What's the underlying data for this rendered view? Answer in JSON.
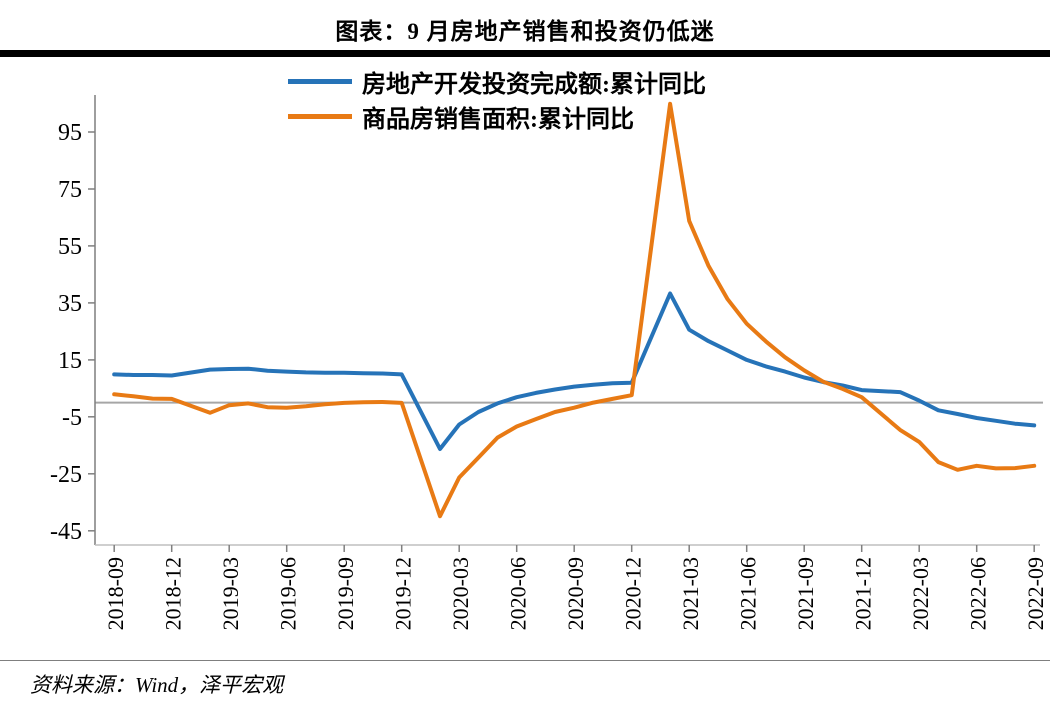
{
  "title": "图表：9 月房地产销售和投资仍低迷",
  "source": "资料来源：Wind，泽平宏观",
  "colors": {
    "investment_line": "#2673b8",
    "sales_line": "#e87a14",
    "zero_line": "#a6a6a6",
    "axis": "#7f7f7f",
    "title_bar": "#000000"
  },
  "chart_data": {
    "type": "line",
    "title": "图表：9 月房地产销售和投资仍低迷",
    "xlabel": "",
    "ylabel": "",
    "x_unit": "months since 2018-09 (cumulative year-on-year, %)",
    "xlim": [
      -1,
      48.3
    ],
    "ylim": [
      -50,
      108
    ],
    "yticks": [
      95,
      75,
      55,
      35,
      15,
      -5,
      -25,
      -45
    ],
    "zero_line": 0,
    "grid": false,
    "legend_position": "top-center",
    "xtick_positions": [
      0,
      3,
      6,
      9,
      12,
      15,
      18,
      21,
      24,
      27,
      30,
      33,
      36,
      39,
      42,
      45,
      48
    ],
    "xtick_labels": [
      "2018-09",
      "2018-12",
      "2019-03",
      "2019-06",
      "2019-09",
      "2019-12",
      "2020-03",
      "2020-06",
      "2020-09",
      "2020-12",
      "2021-03",
      "2021-06",
      "2021-09",
      "2021-12",
      "2022-03",
      "2022-06",
      "2022-09"
    ],
    "series": [
      {
        "name": "房地产开发投资完成额:累计同比",
        "color": "#2673b8",
        "x": [
          0,
          1,
          2,
          3,
          5,
          6,
          7,
          8,
          9,
          10,
          11,
          12,
          13,
          14,
          15,
          17,
          18,
          19,
          20,
          21,
          22,
          23,
          24,
          25,
          26,
          27,
          29,
          30,
          31,
          32,
          33,
          34,
          35,
          36,
          37,
          38,
          39,
          41,
          42,
          43,
          44,
          45,
          46,
          47,
          48
        ],
        "y": [
          9.9,
          9.7,
          9.7,
          9.5,
          11.6,
          11.8,
          11.9,
          11.2,
          10.9,
          10.6,
          10.5,
          10.5,
          10.3,
          10.2,
          9.9,
          -16.3,
          -7.7,
          -3.3,
          -0.3,
          1.9,
          3.4,
          4.6,
          5.6,
          6.3,
          6.8,
          7.0,
          38.3,
          25.6,
          21.6,
          18.3,
          15.0,
          12.7,
          10.9,
          8.8,
          7.2,
          6.0,
          4.4,
          3.7,
          0.7,
          -2.7,
          -4.0,
          -5.4,
          -6.4,
          -7.4,
          -8.0
        ]
      },
      {
        "name": "商品房销售面积:累计同比",
        "color": "#e87a14",
        "x": [
          0,
          1,
          2,
          3,
          5,
          6,
          7,
          8,
          9,
          10,
          11,
          12,
          13,
          14,
          15,
          17,
          18,
          19,
          20,
          21,
          22,
          23,
          24,
          25,
          26,
          27,
          29,
          30,
          31,
          32,
          33,
          34,
          35,
          36,
          37,
          38,
          39,
          41,
          42,
          43,
          44,
          45,
          46,
          47,
          48
        ],
        "y": [
          2.9,
          2.2,
          1.4,
          1.3,
          -3.6,
          -0.9,
          -0.3,
          -1.6,
          -1.8,
          -1.3,
          -0.6,
          -0.1,
          0.1,
          0.2,
          -0.1,
          -39.9,
          -26.3,
          -19.3,
          -12.3,
          -8.4,
          -5.8,
          -3.3,
          -1.8,
          0.0,
          1.3,
          2.6,
          104.9,
          63.8,
          48.1,
          36.3,
          27.7,
          21.5,
          15.9,
          11.3,
          7.3,
          4.8,
          1.9,
          -9.6,
          -13.8,
          -20.9,
          -23.6,
          -22.2,
          -23.1,
          -23.0,
          -22.2
        ]
      }
    ]
  }
}
